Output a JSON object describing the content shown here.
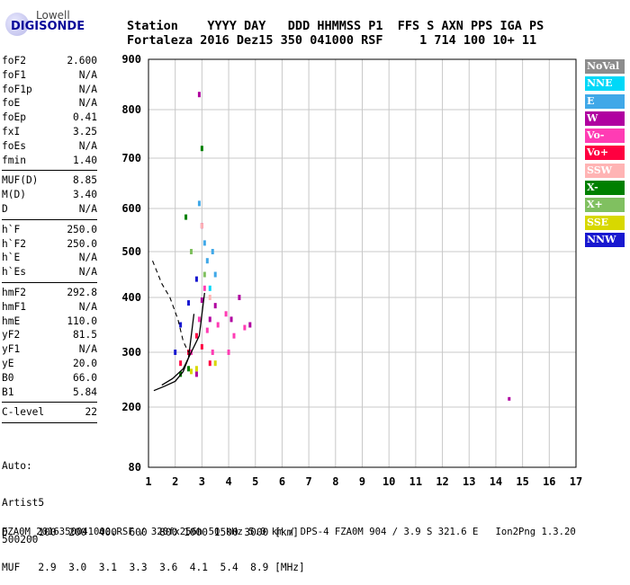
{
  "logo": {
    "line1": "Lowell",
    "line2": "DIGISONDE"
  },
  "header": {
    "line1": "Station    YYYY DAY   DDD HHMMSS P1  FFS S AXN PPS IGA PS",
    "line2": "Fortaleza 2016 Dez15 350 041000 RSF     1 714 100 10+ 11"
  },
  "params": {
    "group1": [
      {
        "k": "foF2",
        "v": "2.600"
      },
      {
        "k": "foF1",
        "v": "N/A"
      },
      {
        "k": "foF1p",
        "v": "N/A"
      },
      {
        "k": "foE",
        "v": "N/A"
      },
      {
        "k": "foEp",
        "v": "0.41"
      },
      {
        "k": "fxI",
        "v": "3.25"
      },
      {
        "k": "foEs",
        "v": "N/A"
      },
      {
        "k": "fmin",
        "v": "1.40"
      }
    ],
    "group2": [
      {
        "k": "MUF(D)",
        "v": "8.85"
      },
      {
        "k": "M(D)",
        "v": "3.40"
      },
      {
        "k": "D",
        "v": "N/A"
      }
    ],
    "group3": [
      {
        "k": "h`F",
        "v": "250.0"
      },
      {
        "k": "h`F2",
        "v": "250.0"
      },
      {
        "k": "h`E",
        "v": "N/A"
      },
      {
        "k": "h`Es",
        "v": "N/A"
      }
    ],
    "group4": [
      {
        "k": "hmF2",
        "v": "292.8"
      },
      {
        "k": "hmF1",
        "v": "N/A"
      },
      {
        "k": "hmE",
        "v": "110.0"
      },
      {
        "k": "yF2",
        "v": "81.5"
      },
      {
        "k": "yF1",
        "v": "N/A"
      },
      {
        "k": "yE",
        "v": "20.0"
      },
      {
        "k": "B0",
        "v": "66.0"
      },
      {
        "k": "B1",
        "v": "5.84"
      }
    ],
    "clevel": {
      "k": "C-level",
      "v": "22"
    }
  },
  "scaling": {
    "line1": "Auto:",
    "line2": "Artist5",
    "line3": "500200"
  },
  "footer": {
    "d_line": "D     100  200  400  600  800 1000 1500 3000 [km]",
    "muf_line": "MUF   2.9  3.0  3.1  3.3  3.6  4.1  5.4  8.9 [MHz]",
    "file_line": "FZA0M_2016350041000.RSF / 320fx256h 50 kHz 5.0 km / DPS-4 FZA0M 904 / 3.9 S 321.6 E   Ion2Png 1.3.20"
  },
  "legend": [
    {
      "label": "NoVal",
      "color": "#8c8c8c"
    },
    {
      "label": "NNE",
      "color": "#00d8f8"
    },
    {
      "label": "E",
      "color": "#40a8e8"
    },
    {
      "label": "W",
      "color": "#b000a0"
    },
    {
      "label": "Vo-",
      "color": "#ff3cb4"
    },
    {
      "label": "Vo+",
      "color": "#ff0040"
    },
    {
      "label": "SSW",
      "color": "#ffb4b4"
    },
    {
      "label": "X-",
      "color": "#008000"
    },
    {
      "label": "X+",
      "color": "#80c060"
    },
    {
      "label": "SSE",
      "color": "#d8d800"
    },
    {
      "label": "NNW",
      "color": "#1818d0"
    }
  ],
  "chart_data": {
    "type": "scatter",
    "title": "",
    "xlabel": "",
    "ylabel": "",
    "xlim": [
      1,
      17
    ],
    "ylim": [
      80,
      900
    ],
    "x_ticks": [
      1,
      2,
      3,
      4,
      5,
      6,
      7,
      8,
      9,
      10,
      11,
      12,
      13,
      14,
      15,
      16,
      17
    ],
    "y_ticks": [
      80,
      200,
      300,
      400,
      500,
      600,
      700,
      800,
      900
    ],
    "grid": true,
    "legend_position": "right",
    "series": [
      {
        "name": "Vo-",
        "color": "#ff3cb4",
        "points": [
          [
            2.9,
            360
          ],
          [
            3.2,
            340
          ],
          [
            3.6,
            350
          ],
          [
            3.9,
            370
          ],
          [
            4.2,
            330
          ],
          [
            4.6,
            345
          ],
          [
            2.6,
            300
          ],
          [
            3.1,
            420
          ],
          [
            3.4,
            300
          ],
          [
            4.0,
            300
          ]
        ]
      },
      {
        "name": "W",
        "color": "#b000a0",
        "points": [
          [
            3.0,
            395
          ],
          [
            3.5,
            385
          ],
          [
            4.1,
            360
          ],
          [
            4.4,
            400
          ],
          [
            4.8,
            350
          ],
          [
            2.8,
            260
          ],
          [
            3.3,
            360
          ],
          [
            3.0,
            560
          ],
          [
            2.9,
            830
          ]
        ]
      },
      {
        "name": "Vo+",
        "color": "#ff0040",
        "points": [
          [
            2.2,
            280
          ],
          [
            2.5,
            300
          ],
          [
            2.8,
            330
          ],
          [
            3.0,
            310
          ],
          [
            3.3,
            280
          ]
        ]
      },
      {
        "name": "E",
        "color": "#40a8e8",
        "points": [
          [
            3.1,
            520
          ],
          [
            3.2,
            480
          ],
          [
            3.5,
            450
          ],
          [
            2.9,
            610
          ],
          [
            3.4,
            500
          ]
        ]
      },
      {
        "name": "NNW",
        "color": "#1818d0",
        "points": [
          [
            2.0,
            300
          ],
          [
            2.2,
            350
          ],
          [
            2.5,
            390
          ],
          [
            2.8,
            440
          ]
        ]
      },
      {
        "name": "X-",
        "color": "#008000",
        "points": [
          [
            2.2,
            260
          ],
          [
            2.5,
            270
          ],
          [
            3.0,
            720
          ],
          [
            2.4,
            580
          ]
        ]
      },
      {
        "name": "SSE",
        "color": "#d8d800",
        "points": [
          [
            2.8,
            270
          ],
          [
            3.5,
            280
          ],
          [
            2.6,
            265
          ]
        ]
      },
      {
        "name": "SSW",
        "color": "#ffb4b4",
        "points": [
          [
            3.0,
            560
          ],
          [
            3.3,
            400
          ]
        ]
      },
      {
        "name": "X+",
        "color": "#80c060",
        "points": [
          [
            3.1,
            450
          ],
          [
            2.6,
            500
          ]
        ]
      },
      {
        "name": "NNE",
        "color": "#00d8f8",
        "points": [
          [
            3.3,
            420
          ]
        ]
      }
    ],
    "isolated_points": [
      [
        14.5,
        215
      ]
    ],
    "traces": {
      "o_trace": [
        [
          1.2,
          230
        ],
        [
          1.6,
          238
        ],
        [
          2.0,
          247
        ],
        [
          2.3,
          265
        ],
        [
          2.5,
          290
        ],
        [
          2.6,
          330
        ],
        [
          2.7,
          370
        ]
      ],
      "x_trace": [
        [
          1.5,
          240
        ],
        [
          1.9,
          252
        ],
        [
          2.3,
          270
        ],
        [
          2.6,
          300
        ],
        [
          2.9,
          330
        ],
        [
          3.0,
          370
        ],
        [
          3.1,
          410
        ]
      ],
      "dashed": [
        [
          1.15,
          480
        ],
        [
          1.5,
          430
        ],
        [
          1.8,
          400
        ],
        [
          2.1,
          360
        ],
        [
          2.3,
          320
        ],
        [
          2.5,
          300
        ]
      ]
    }
  }
}
